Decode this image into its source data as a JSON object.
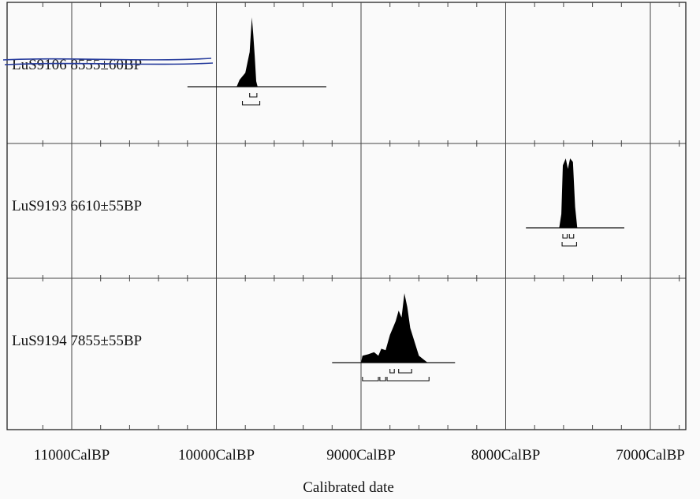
{
  "chart_data": {
    "type": "calibration-plot",
    "title": "",
    "xlabel": "Calibrated date",
    "x_reversed": true,
    "xlim": [
      11200,
      6800
    ],
    "x_ticks": [
      {
        "value": 11000,
        "label": "11000CalBP"
      },
      {
        "value": 10000,
        "label": "10000CalBP"
      },
      {
        "value": 9000,
        "label": "9000CalBP"
      },
      {
        "value": 8000,
        "label": "8000CalBP"
      },
      {
        "value": 7000,
        "label": "7000CalBP"
      }
    ],
    "grid": true,
    "colors": {
      "distribution": "#000000",
      "strike_ink": "#2a3f9e"
    },
    "samples": [
      {
        "label": "LuS9106  8555±60BP",
        "struck_through": true,
        "baseline_range": [
          10200,
          9240
        ],
        "distribution": [
          [
            9860,
            0
          ],
          [
            9840,
            0.1
          ],
          [
            9800,
            0.2
          ],
          [
            9770,
            0.5
          ],
          [
            9755,
            1
          ],
          [
            9745,
            0.75
          ],
          [
            9735,
            0.45
          ],
          [
            9725,
            0.08
          ],
          [
            9715,
            0
          ]
        ],
        "sigma1": [
          [
            9770,
            9720
          ]
        ],
        "sigma2": [
          [
            9820,
            9700
          ]
        ]
      },
      {
        "label": "LuS9193  6610±55BP",
        "struck_through": false,
        "baseline_range": [
          7860,
          7180
        ],
        "distribution": [
          [
            7630,
            0
          ],
          [
            7615,
            0.2
          ],
          [
            7605,
            0.9
          ],
          [
            7585,
            1
          ],
          [
            7570,
            0.85
          ],
          [
            7555,
            1
          ],
          [
            7535,
            0.95
          ],
          [
            7520,
            0.3
          ],
          [
            7505,
            0
          ]
        ],
        "sigma1": [
          [
            7605,
            7575
          ],
          [
            7560,
            7530
          ]
        ],
        "sigma2": [
          [
            7610,
            7510
          ]
        ]
      },
      {
        "label": "LuS9194  7855±55BP",
        "struck_through": false,
        "baseline_range": [
          9200,
          8350
        ],
        "distribution": [
          [
            9000,
            0
          ],
          [
            8990,
            0.1
          ],
          [
            8950,
            0.12
          ],
          [
            8910,
            0.15
          ],
          [
            8880,
            0.1
          ],
          [
            8860,
            0.2
          ],
          [
            8830,
            0.18
          ],
          [
            8800,
            0.4
          ],
          [
            8780,
            0.5
          ],
          [
            8760,
            0.6
          ],
          [
            8740,
            0.75
          ],
          [
            8720,
            0.65
          ],
          [
            8700,
            1
          ],
          [
            8680,
            0.8
          ],
          [
            8660,
            0.5
          ],
          [
            8630,
            0.3
          ],
          [
            8600,
            0.1
          ],
          [
            8570,
            0.05
          ],
          [
            8540,
            0
          ]
        ],
        "sigma1": [
          [
            8800,
            8770
          ],
          [
            8740,
            8650
          ]
        ],
        "sigma2": [
          [
            8990,
            8880
          ],
          [
            8870,
            8830
          ],
          [
            8820,
            8530
          ]
        ]
      }
    ]
  }
}
